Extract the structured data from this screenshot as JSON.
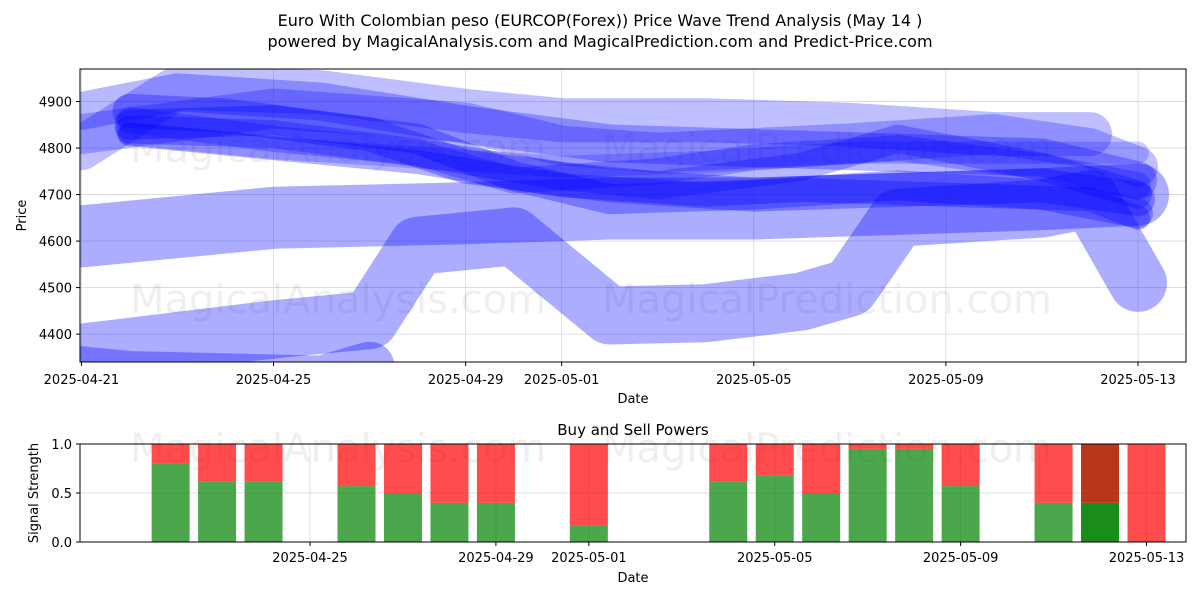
{
  "title_line1": "Euro With Colombian peso (EURCOP(Forex)) Price Wave Trend Analysis (May 14 )",
  "title_line2": "powered by MagicalAnalysis.com and MagicalPrediction.com and Predict-Price.com",
  "watermarks": [
    "MagicalAnalysis.com",
    "MagicalPrediction.com"
  ],
  "colors": {
    "wave": "#0000ff",
    "buy": "#008000",
    "sell": "#ff0000",
    "sell_strong": "#b22000"
  },
  "chart_data": [
    {
      "type": "line",
      "title": "",
      "xlabel": "Date",
      "ylabel": "Price",
      "x_ticks": [
        "2025-04-21",
        "2025-04-25",
        "2025-04-29",
        "2025-05-01",
        "2025-05-05",
        "2025-05-09",
        "2025-05-13"
      ],
      "y_ticks": [
        4400,
        4500,
        4600,
        4700,
        4800,
        4900
      ],
      "xlim": [
        "2025-04-21",
        "2025-05-14"
      ],
      "ylim": [
        4340,
        4970
      ],
      "grid": true,
      "series": [
        {
          "x": [
            "2025-04-21",
            "2025-04-25",
            "2025-04-29",
            "2025-05-01",
            "2025-05-03",
            "2025-05-07",
            "2025-05-10",
            "2025-05-12",
            "2025-05-13"
          ],
          "y": [
            4830,
            4885,
            4855,
            4805,
            4790,
            4810,
            4830,
            4800,
            4760
          ]
        },
        {
          "x": [
            "2025-04-21",
            "2025-04-23",
            "2025-04-26",
            "2025-04-29",
            "2025-05-02",
            "2025-05-05",
            "2025-05-08",
            "2025-05-11",
            "2025-05-13"
          ],
          "y": [
            4880,
            4920,
            4900,
            4850,
            4810,
            4800,
            4790,
            4780,
            4730
          ]
        },
        {
          "x": [
            "2025-04-22",
            "2025-04-24",
            "2025-04-27",
            "2025-04-29",
            "2025-05-02",
            "2025-05-05",
            "2025-05-08",
            "2025-05-11",
            "2025-05-13"
          ],
          "y": [
            4880,
            4870,
            4830,
            4760,
            4720,
            4700,
            4710,
            4720,
            4690
          ]
        },
        {
          "x": [
            "2025-04-22",
            "2025-04-25",
            "2025-04-28",
            "2025-04-30",
            "2025-05-02",
            "2025-05-05",
            "2025-05-08",
            "2025-05-11",
            "2025-05-13"
          ],
          "y": [
            4850,
            4860,
            4820,
            4740,
            4690,
            4700,
            4720,
            4700,
            4660
          ]
        },
        {
          "x": [
            "2025-04-22",
            "2025-04-25",
            "2025-04-28",
            "2025-05-01",
            "2025-05-03",
            "2025-05-06",
            "2025-05-08",
            "2025-05-11",
            "2025-05-13"
          ],
          "y": [
            4840,
            4830,
            4790,
            4740,
            4720,
            4760,
            4820,
            4760,
            4700
          ]
        },
        {
          "x": [
            "2025-04-22",
            "2025-04-25",
            "2025-04-28",
            "2025-04-30",
            "2025-05-03",
            "2025-05-05",
            "2025-05-08",
            "2025-05-11",
            "2025-05-13"
          ],
          "y": [
            4860,
            4820,
            4790,
            4730,
            4750,
            4780,
            4800,
            4760,
            4720
          ]
        },
        {
          "x": [
            "2025-04-22",
            "2025-04-25",
            "2025-04-28",
            "2025-05-01",
            "2025-05-04",
            "2025-05-06",
            "2025-05-09",
            "2025-05-12",
            "2025-05-13"
          ],
          "y": [
            4830,
            4800,
            4770,
            4720,
            4700,
            4710,
            4700,
            4690,
            4650
          ]
        },
        {
          "x": [
            "2025-04-21",
            "2025-04-23",
            "2025-04-26",
            "2025-04-29",
            "2025-05-01",
            "2025-05-04",
            "2025-05-07",
            "2025-05-10",
            "2025-05-12"
          ],
          "y": [
            4800,
            4930,
            4920,
            4880,
            4860,
            4860,
            4850,
            4830,
            4830
          ]
        },
        {
          "x": [
            "2025-04-22",
            "2025-04-25",
            "2025-04-28",
            "2025-05-01",
            "2025-05-04",
            "2025-05-07",
            "2025-05-10",
            "2025-05-13"
          ],
          "y": [
            4830,
            4800,
            4780,
            4760,
            4770,
            4790,
            4790,
            4790
          ]
        },
        {
          "x": [
            "2025-04-21",
            "2025-04-25",
            "2025-04-29",
            "2025-05-02",
            "2025-05-05",
            "2025-05-08",
            "2025-05-11",
            "2025-05-13"
          ],
          "y": [
            4610,
            4650,
            4660,
            4670,
            4670,
            4680,
            4690,
            4700
          ]
        },
        {
          "x": [
            "2025-04-21",
            "2025-04-25",
            "2025-04-27",
            "2025-04-28",
            "2025-04-30",
            "2025-05-02",
            "2025-05-04",
            "2025-05-06",
            "2025-05-07",
            "2025-05-08",
            "2025-05-11",
            "2025-05-12",
            "2025-05-13"
          ],
          "y": [
            4360,
            4410,
            4430,
            4590,
            4610,
            4440,
            4445,
            4470,
            4500,
            4650,
            4670,
            4690,
            4510
          ]
        },
        {
          "x": [
            "2025-04-21",
            "2025-04-22",
            "2025-04-26",
            "2025-04-27"
          ],
          "y": [
            4320,
            4310,
            4300,
            4330
          ]
        }
      ]
    },
    {
      "type": "bar",
      "title": "Buy and Sell Powers",
      "xlabel": "Date",
      "ylabel": "Signal Strength",
      "x_ticks": [
        "2025-04-25",
        "2025-04-29",
        "2025-05-01",
        "2025-05-05",
        "2025-05-09",
        "2025-05-13"
      ],
      "y_ticks": [
        0.0,
        0.5,
        1.0
      ],
      "ylim": [
        0,
        1
      ],
      "series": [
        {
          "name": "Buy",
          "color": "#008000"
        },
        {
          "name": "Sell",
          "color": "#ff0000"
        }
      ],
      "categories": [
        "2025-04-22",
        "2025-04-23",
        "2025-04-24",
        "2025-04-26",
        "2025-04-27",
        "2025-04-28",
        "2025-04-29",
        "2025-05-01",
        "2025-05-04",
        "2025-05-05",
        "2025-05-06",
        "2025-05-07",
        "2025-05-08",
        "2025-05-09",
        "2025-05-11",
        "2025-05-12",
        "2025-05-13"
      ],
      "buy": [
        0.8,
        0.62,
        0.62,
        0.57,
        0.5,
        0.4,
        0.4,
        0.17,
        0.62,
        0.68,
        0.5,
        0.95,
        0.95,
        0.57,
        0.4,
        0.4,
        0.0
      ],
      "sell": [
        0.2,
        0.38,
        0.38,
        0.43,
        0.5,
        0.6,
        0.6,
        0.83,
        0.38,
        0.32,
        0.5,
        0.05,
        0.05,
        0.43,
        0.6,
        0.6,
        1.0
      ]
    }
  ]
}
